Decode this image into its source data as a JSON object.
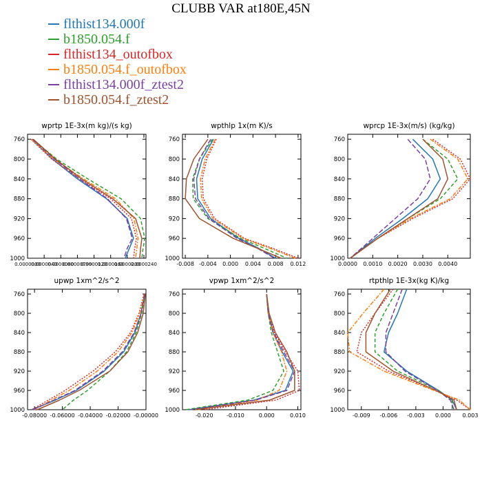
{
  "figure": {
    "title": "CLUBB VAR at180E,45N"
  },
  "legend": [
    {
      "label": "flthist134.000f",
      "color": "#1f77b4",
      "dash": ""
    },
    {
      "label": "b1850.054.f",
      "color": "#2ca02c",
      "dash": "5,3"
    },
    {
      "label": "flthist134_outofbox",
      "color": "#d62728",
      "dash": "2,2"
    },
    {
      "label": "b1850.054.f_outofbox",
      "color": "#ff7f0e",
      "dash": "6,2,2,2"
    },
    {
      "label": "flthist134.000f_ztest2",
      "color": "#7b3fa0",
      "dash": "7,3"
    },
    {
      "label": "b1850.054.f_ztest2",
      "color": "#a0522d",
      "dash": ""
    }
  ],
  "chart_data": [
    {
      "type": "line",
      "title": "wprtp  1E-3x(m kg)/(s kg)",
      "xlim": [
        0.0,
        2.85e-05
      ],
      "ylim": [
        1000,
        750
      ],
      "xticks": [
        0.0,
        4e-06,
        8e-06,
        1.2e-05,
        1.6e-05,
        2e-05,
        2.4e-05,
        2.8e-05
      ],
      "xtick_labels": [
        "0.0000000",
        "0.0000040",
        "0.0000080",
        "0.00000799",
        "0.0000120",
        "0.0000160",
        "0.0000200",
        "0.0000240"
      ],
      "yticks": [
        760,
        800,
        840,
        880,
        920,
        960,
        1000
      ],
      "ytick_labels": [
        "760",
        "800",
        "840",
        "880",
        "920",
        "960",
        "1000"
      ],
      "y": [
        760,
        800,
        840,
        880,
        920,
        960,
        980,
        1000
      ],
      "series": [
        {
          "name": "flthist134.000f",
          "values": [
            1e-06,
            6e-06,
            1.2e-05,
            1.9e-05,
            2.4e-05,
            2.55e-05,
            2.45e-05,
            2.35e-05
          ]
        },
        {
          "name": "b1850.054.f",
          "values": [
            1.2e-06,
            7e-06,
            1.45e-05,
            2.25e-05,
            2.72e-05,
            2.82e-05,
            2.78e-05,
            2.75e-05
          ]
        },
        {
          "name": "flthist134_outofbox",
          "values": [
            8e-07,
            5.8e-06,
            1.25e-05,
            2e-05,
            2.5e-05,
            2.62e-05,
            2.58e-05,
            2.55e-05
          ]
        },
        {
          "name": "b1850.054.f_outofbox",
          "values": [
            9e-07,
            6.3e-06,
            1.35e-05,
            2.12e-05,
            2.56e-05,
            2.66e-05,
            2.63e-05,
            2.6e-05
          ]
        },
        {
          "name": "flthist134.000f_ztest2",
          "values": [
            1.2e-06,
            6.5e-06,
            1.25e-05,
            1.92e-05,
            2.38e-05,
            2.52e-05,
            2.4e-05,
            2.32e-05
          ]
        },
        {
          "name": "b1850.054.f_ztest2",
          "values": [
            1.4e-06,
            6.7e-06,
            1.3e-05,
            2.05e-05,
            2.6e-05,
            2.75e-05,
            2.72e-05,
            2.7e-05
          ]
        }
      ]
    },
    {
      "type": "line",
      "title": "wpthlp  1x(m K)/s",
      "xlim": [
        -0.0085,
        0.0125
      ],
      "ylim": [
        1000,
        750
      ],
      "xticks": [
        -0.008,
        -0.004,
        0.0,
        0.004,
        0.008,
        0.012
      ],
      "xtick_labels": [
        "-0.008",
        "-0.004",
        "0.000",
        "0.004",
        "0.008",
        "0.012"
      ],
      "yticks": [
        760,
        800,
        840,
        880,
        920,
        960,
        1000
      ],
      "ytick_labels": [
        "760",
        "800",
        "840",
        "880",
        "920",
        "960",
        "1000"
      ],
      "y": [
        760,
        800,
        840,
        880,
        920,
        960,
        980,
        1000
      ],
      "series": [
        {
          "name": "flthist134.000f",
          "values": [
            -0.003,
            -0.005,
            -0.006,
            -0.0058,
            -0.0035,
            0.0015,
            0.005,
            0.008
          ]
        },
        {
          "name": "b1850.054.f",
          "values": [
            -0.0032,
            -0.0055,
            -0.0067,
            -0.0066,
            -0.004,
            0.0018,
            0.006,
            0.01
          ]
        },
        {
          "name": "flthist134_outofbox",
          "values": [
            -0.0025,
            -0.0042,
            -0.005,
            -0.0048,
            -0.0028,
            0.0025,
            0.0075,
            0.012
          ]
        },
        {
          "name": "b1850.054.f_outofbox",
          "values": [
            -0.0027,
            -0.0045,
            -0.0053,
            -0.0051,
            -0.0031,
            0.0022,
            0.007,
            0.0115
          ]
        },
        {
          "name": "flthist134.000f_ztest2",
          "values": [
            -0.0035,
            -0.0055,
            -0.0065,
            -0.0062,
            -0.0038,
            0.0012,
            0.0048,
            0.0078
          ]
        },
        {
          "name": "b1850.054.f_ztest2",
          "values": [
            -0.004,
            -0.0065,
            -0.0078,
            -0.008,
            -0.0055,
            0.0005,
            0.0048,
            0.009
          ]
        }
      ]
    },
    {
      "type": "line",
      "title": "wprcp  1E-3x(m/s) (kg/kg)",
      "xlim": [
        0.0,
        0.0049
      ],
      "ylim": [
        1000,
        750
      ],
      "xticks": [
        0.0,
        0.001,
        0.002,
        0.003,
        0.004
      ],
      "xtick_labels": [
        "0.0000",
        "0.0010",
        "0.0020",
        "0.0030",
        "0.0040"
      ],
      "yticks": [
        760,
        800,
        840,
        880,
        920,
        960,
        1000
      ],
      "ytick_labels": [
        "760",
        "800",
        "840",
        "880",
        "920",
        "960",
        "1000"
      ],
      "y": [
        760,
        800,
        840,
        880,
        920,
        960,
        1000
      ],
      "series": [
        {
          "name": "flthist134.000f",
          "values": [
            0.0026,
            0.0034,
            0.0037,
            0.0032,
            0.0022,
            0.0011,
            0.0001
          ]
        },
        {
          "name": "b1850.054.f",
          "values": [
            0.003,
            0.004,
            0.0044,
            0.0037,
            0.0024,
            0.0012,
            0.0001
          ]
        },
        {
          "name": "flthist134_outofbox",
          "values": [
            0.0034,
            0.0045,
            0.0049,
            0.0042,
            0.0026,
            0.0012,
            0.0001
          ]
        },
        {
          "name": "b1850.054.f_outofbox",
          "values": [
            0.0033,
            0.0044,
            0.0048,
            0.0041,
            0.0025,
            0.0012,
            0.0001
          ]
        },
        {
          "name": "flthist134.000f_ztest2",
          "values": [
            0.0024,
            0.0031,
            0.0033,
            0.0028,
            0.0019,
            0.001,
            0.0001
          ]
        },
        {
          "name": "b1850.054.f_ztest2",
          "values": [
            0.003,
            0.0038,
            0.004,
            0.0036,
            0.0024,
            0.0012,
            0.0001
          ]
        }
      ]
    },
    {
      "type": "line",
      "title": "upwp  1xm^2/s^2",
      "xlim": [
        -0.085,
        0.0
      ],
      "ylim": [
        1000,
        750
      ],
      "xticks": [
        -0.08,
        -0.06,
        -0.04,
        -0.02,
        0.0
      ],
      "xtick_labels": [
        "-0.08000",
        "-0.06000",
        "-0.04000",
        "-0.02000",
        "-0.00000"
      ],
      "yticks": [
        760,
        800,
        840,
        880,
        920,
        960,
        1000
      ],
      "ytick_labels": [
        "760",
        "800",
        "840",
        "880",
        "920",
        "960",
        "1000"
      ],
      "y": [
        760,
        800,
        840,
        880,
        920,
        960,
        980,
        1000
      ],
      "series": [
        {
          "name": "flthist134.000f",
          "values": [
            -0.001,
            -0.0035,
            -0.008,
            -0.016,
            -0.03,
            -0.05,
            -0.065,
            -0.082
          ]
        },
        {
          "name": "b1850.054.f",
          "values": [
            -0.0008,
            -0.003,
            -0.007,
            -0.014,
            -0.026,
            -0.042,
            -0.052,
            -0.06
          ]
        },
        {
          "name": "flthist134_outofbox",
          "values": [
            -0.0015,
            -0.005,
            -0.011,
            -0.022,
            -0.038,
            -0.058,
            -0.07,
            -0.082
          ]
        },
        {
          "name": "b1850.054.f_outofbox",
          "values": [
            -0.0012,
            -0.0045,
            -0.01,
            -0.02,
            -0.035,
            -0.055,
            -0.068,
            -0.08
          ]
        },
        {
          "name": "flthist134.000f_ztest2",
          "values": [
            -0.001,
            -0.0035,
            -0.0085,
            -0.017,
            -0.031,
            -0.051,
            -0.066,
            -0.081
          ]
        },
        {
          "name": "b1850.054.f_ztest2",
          "values": [
            -0.0005,
            -0.002,
            -0.006,
            -0.013,
            -0.026,
            -0.048,
            -0.062,
            -0.078
          ]
        }
      ]
    },
    {
      "type": "line",
      "title": "vpwp  1xm^2/s^2",
      "xlim": [
        -0.027,
        0.011
      ],
      "ylim": [
        1000,
        750
      ],
      "xticks": [
        -0.02,
        -0.01,
        0.0,
        0.01
      ],
      "xtick_labels": [
        "-0.020",
        "-0.010",
        "0.000",
        "0.010"
      ],
      "yticks": [
        760,
        800,
        840,
        880,
        920,
        960,
        1000
      ],
      "ytick_labels": [
        "760",
        "800",
        "840",
        "880",
        "920",
        "960",
        "1000"
      ],
      "y": [
        760,
        800,
        840,
        880,
        920,
        960,
        980,
        1000
      ],
      "series": [
        {
          "name": "flthist134.000f",
          "values": [
            0.0,
            0.0005,
            0.002,
            0.005,
            0.0085,
            0.006,
            -0.004,
            -0.025
          ]
        },
        {
          "name": "b1850.054.f",
          "values": [
            0.0,
            0.0005,
            0.0015,
            0.0035,
            0.0055,
            0.002,
            -0.006,
            -0.026
          ]
        },
        {
          "name": "flthist134_outofbox",
          "values": [
            0.0,
            0.0008,
            0.0025,
            0.006,
            0.01,
            0.0105,
            0.003,
            -0.02
          ]
        },
        {
          "name": "b1850.054.f_outofbox",
          "values": [
            0.0,
            0.0006,
            0.002,
            0.0048,
            0.0065,
            0.004,
            -0.003,
            -0.022
          ]
        },
        {
          "name": "flthist134.000f_ztest2",
          "values": [
            0.0,
            0.0005,
            0.0022,
            0.0055,
            0.009,
            0.0065,
            -0.0035,
            -0.0245
          ]
        },
        {
          "name": "b1850.054.f_ztest2",
          "values": [
            0.0,
            0.0008,
            0.0028,
            0.0065,
            0.009,
            0.009,
            0.001,
            -0.023
          ]
        }
      ]
    },
    {
      "type": "line",
      "title": "rtpthlp  1E-3x(kg K)/kg",
      "xlim": [
        -0.0105,
        0.003
      ],
      "ylim": [
        1000,
        750
      ],
      "xticks": [
        -0.009,
        -0.006,
        -0.003,
        0.0,
        0.003
      ],
      "xtick_labels": [
        "-0.009",
        "-0.006",
        "-0.003",
        "0.000",
        "0.003"
      ],
      "yticks": [
        760,
        800,
        840,
        880,
        920,
        960,
        1000
      ],
      "ytick_labels": [
        "760",
        "800",
        "840",
        "880",
        "920",
        "960",
        "1000"
      ],
      "y": [
        750,
        800,
        840,
        880,
        920,
        960,
        980,
        1000
      ],
      "series": [
        {
          "name": "flthist134.000f",
          "values": [
            -0.004,
            -0.005,
            -0.006,
            -0.0065,
            -0.004,
            -0.0005,
            0.001,
            0.0015
          ]
        },
        {
          "name": "b1850.054.f",
          "values": [
            -0.005,
            -0.0065,
            -0.0075,
            -0.0075,
            -0.005,
            -0.0005,
            0.001,
            0.001
          ]
        },
        {
          "name": "flthist134_outofbox",
          "values": [
            -0.0055,
            -0.0075,
            -0.009,
            -0.0095,
            -0.006,
            -0.0008,
            0.0015,
            0.003
          ]
        },
        {
          "name": "b1850.054.f_outofbox",
          "values": [
            -0.0065,
            -0.0088,
            -0.0105,
            -0.0103,
            -0.0065,
            -0.001,
            0.0018,
            0.003
          ]
        },
        {
          "name": "flthist134.000f_ztest2",
          "values": [
            -0.0045,
            -0.0055,
            -0.0063,
            -0.0063,
            -0.0042,
            -0.0006,
            0.0008,
            0.0012
          ]
        },
        {
          "name": "b1850.054.f_ztest2",
          "values": [
            -0.0058,
            -0.0075,
            -0.0085,
            -0.0085,
            -0.0055,
            -0.0008,
            0.0012,
            0.0015
          ]
        }
      ]
    }
  ]
}
